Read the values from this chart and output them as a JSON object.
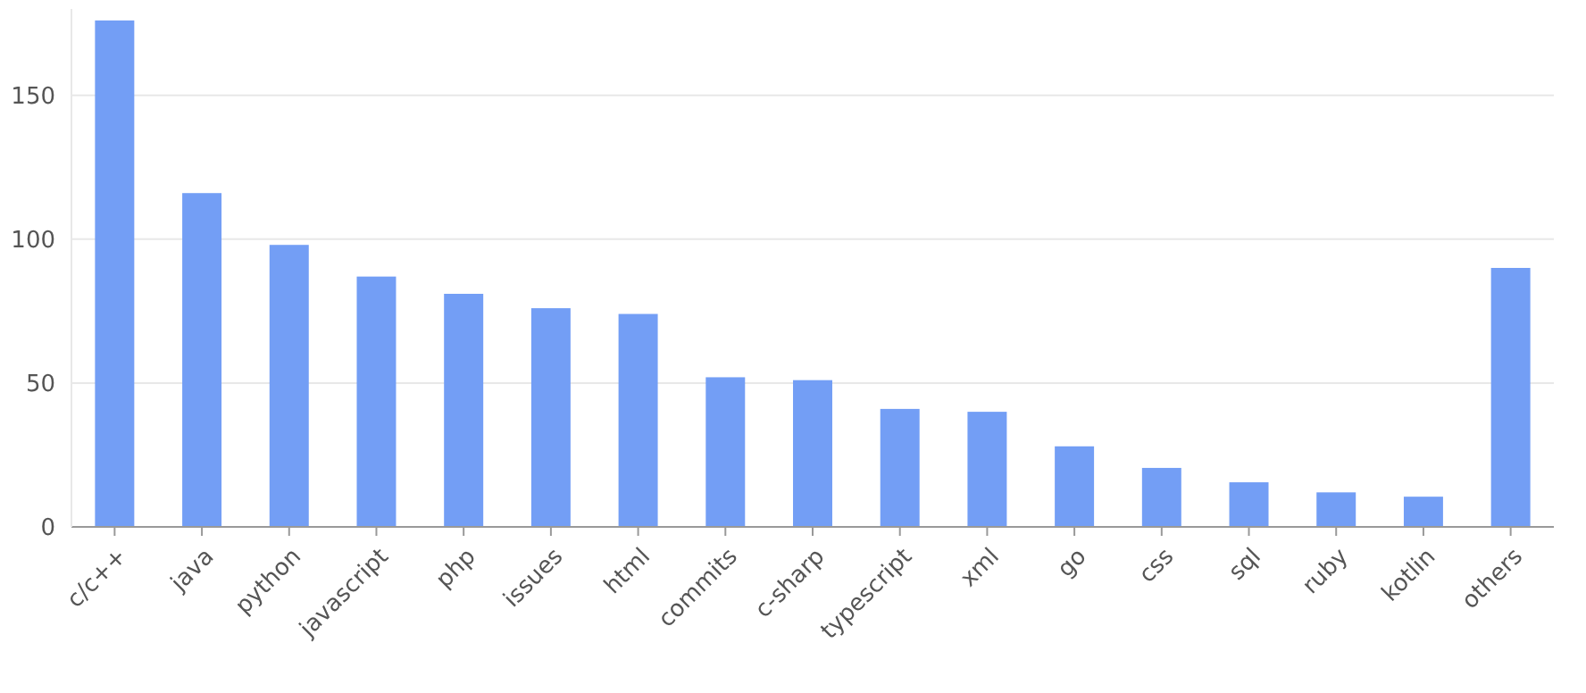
{
  "chart_data": {
    "type": "bar",
    "categories": [
      "c/c++",
      "java",
      "python",
      "javascript",
      "php",
      "issues",
      "html",
      "commits",
      "c-sharp",
      "typescript",
      "xml",
      "go",
      "css",
      "sql",
      "ruby",
      "kotlin",
      "others"
    ],
    "values": [
      176,
      116,
      98,
      87,
      81,
      76,
      74,
      52,
      51,
      41,
      40,
      28,
      20.5,
      15.5,
      12,
      10.5,
      90
    ],
    "color": "#739ef5",
    "ylim": [
      0,
      180
    ],
    "yticks": [
      0,
      50,
      100,
      150
    ],
    "grid": "y"
  }
}
